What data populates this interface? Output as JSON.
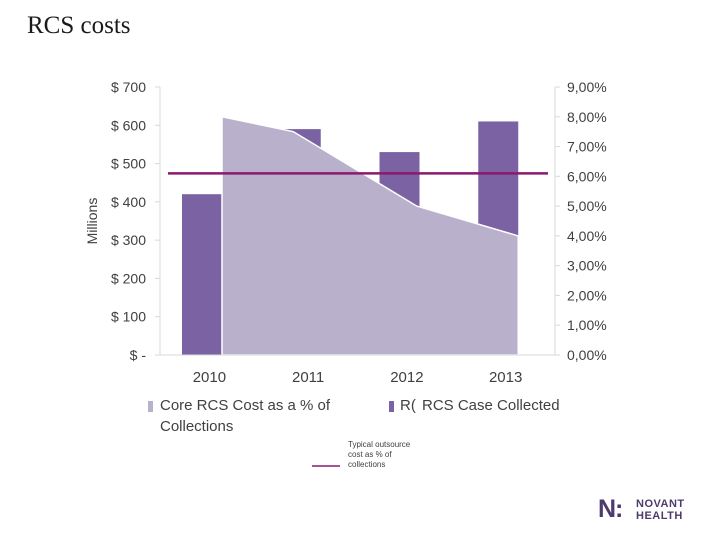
{
  "slide": {
    "title": "RCS costs"
  },
  "brand": {
    "logo_mark": "N:",
    "line1": "NOVANT",
    "line2": "HEALTH",
    "color": "#4e3a6b"
  },
  "chart_data": {
    "type": "bar",
    "categories": [
      "2010",
      "2011",
      "2012",
      "2013"
    ],
    "series": [
      {
        "name": "RCS Case Collected",
        "kind": "bar",
        "axis": "left",
        "color": "#7b62a3",
        "values": [
          420,
          590,
          530,
          610
        ]
      },
      {
        "name": "Core RCS Cost as a % of Collections",
        "kind": "area",
        "axis": "right",
        "color": "#b9b0cc",
        "values": [
          8.0,
          7.5,
          5.0,
          4.0
        ]
      },
      {
        "name": "Typical outsource cost as % of collections",
        "kind": "line",
        "axis": "right",
        "color": "#8b1a6f",
        "values": [
          6.1,
          6.1,
          6.1,
          6.1
        ]
      }
    ],
    "ylabel": "Millions",
    "y_left": {
      "min": 0,
      "max": 700,
      "ticks": [
        "$ -",
        "$ 100",
        "$ 200",
        "$ 300",
        "$ 400",
        "$ 500",
        "$ 600",
        "$ 700"
      ]
    },
    "y_right": {
      "min": 0,
      "max": 9,
      "ticks": [
        "0,00%",
        "1,00%",
        "2,00%",
        "3,00%",
        "4,00%",
        "5,00%",
        "6,00%",
        "7,00%",
        "8,00%",
        "9,00%"
      ]
    },
    "legend": {
      "area_label": "Core RCS Cost as a % of Collections",
      "bar_label_clipped": "R(",
      "bar_label": "RCS Case Collected",
      "line_label": "Typical outsource cost as % of collections"
    },
    "grid": false,
    "legend_position": "bottom"
  }
}
